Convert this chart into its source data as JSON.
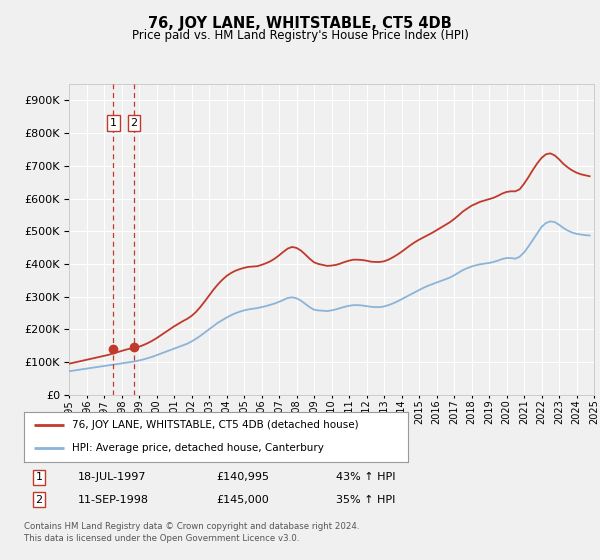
{
  "title": "76, JOY LANE, WHITSTABLE, CT5 4DB",
  "subtitle": "Price paid vs. HM Land Registry's House Price Index (HPI)",
  "legend_line1": "76, JOY LANE, WHITSTABLE, CT5 4DB (detached house)",
  "legend_line2": "HPI: Average price, detached house, Canterbury",
  "footer": "Contains HM Land Registry data © Crown copyright and database right 2024.\nThis data is licensed under the Open Government Licence v3.0.",
  "transaction1_date": "18-JUL-1997",
  "transaction1_price": "£140,995",
  "transaction1_hpi": "43% ↑ HPI",
  "transaction2_date": "11-SEP-1998",
  "transaction2_price": "£145,000",
  "transaction2_hpi": "35% ↑ HPI",
  "hpi_color": "#8ab4d9",
  "price_color": "#c0392b",
  "vline_color": "#c0392b",
  "marker_color": "#c0392b",
  "bg_color": "#f0f0f0",
  "plot_bg_color": "#f0f0f0",
  "grid_color": "#ffffff",
  "ylim": [
    0,
    950000
  ],
  "yticks": [
    0,
    100000,
    200000,
    300000,
    400000,
    500000,
    600000,
    700000,
    800000,
    900000
  ],
  "transaction1_x": 1997.54,
  "transaction2_x": 1998.71,
  "transaction1_y": 140995,
  "transaction2_y": 145000,
  "hpi_x": [
    1995.0,
    1995.25,
    1995.5,
    1995.75,
    1996.0,
    1996.25,
    1996.5,
    1996.75,
    1997.0,
    1997.25,
    1997.5,
    1997.75,
    1998.0,
    1998.25,
    1998.5,
    1998.75,
    1999.0,
    1999.25,
    1999.5,
    1999.75,
    2000.0,
    2000.25,
    2000.5,
    2000.75,
    2001.0,
    2001.25,
    2001.5,
    2001.75,
    2002.0,
    2002.25,
    2002.5,
    2002.75,
    2003.0,
    2003.25,
    2003.5,
    2003.75,
    2004.0,
    2004.25,
    2004.5,
    2004.75,
    2005.0,
    2005.25,
    2005.5,
    2005.75,
    2006.0,
    2006.25,
    2006.5,
    2006.75,
    2007.0,
    2007.25,
    2007.5,
    2007.75,
    2008.0,
    2008.25,
    2008.5,
    2008.75,
    2009.0,
    2009.25,
    2009.5,
    2009.75,
    2010.0,
    2010.25,
    2010.5,
    2010.75,
    2011.0,
    2011.25,
    2011.5,
    2011.75,
    2012.0,
    2012.25,
    2012.5,
    2012.75,
    2013.0,
    2013.25,
    2013.5,
    2013.75,
    2014.0,
    2014.25,
    2014.5,
    2014.75,
    2015.0,
    2015.25,
    2015.5,
    2015.75,
    2016.0,
    2016.25,
    2016.5,
    2016.75,
    2017.0,
    2017.25,
    2017.5,
    2017.75,
    2018.0,
    2018.25,
    2018.5,
    2018.75,
    2019.0,
    2019.25,
    2019.5,
    2019.75,
    2020.0,
    2020.25,
    2020.5,
    2020.75,
    2021.0,
    2021.25,
    2021.5,
    2021.75,
    2022.0,
    2022.25,
    2022.5,
    2022.75,
    2023.0,
    2023.25,
    2023.5,
    2023.75,
    2024.0,
    2024.25,
    2024.5,
    2024.75
  ],
  "hpi_y": [
    72000,
    74000,
    76000,
    78000,
    80000,
    82000,
    84000,
    86000,
    88000,
    90000,
    92000,
    94000,
    96000,
    98000,
    100000,
    102000,
    105000,
    108000,
    112000,
    116000,
    121000,
    126000,
    131000,
    136000,
    141000,
    146000,
    151000,
    156000,
    163000,
    171000,
    180000,
    190000,
    200000,
    210000,
    220000,
    228000,
    236000,
    243000,
    249000,
    254000,
    258000,
    261000,
    263000,
    265000,
    268000,
    271000,
    275000,
    279000,
    284000,
    290000,
    296000,
    298000,
    295000,
    288000,
    278000,
    268000,
    260000,
    258000,
    257000,
    256000,
    258000,
    261000,
    265000,
    269000,
    272000,
    274000,
    274000,
    273000,
    271000,
    269000,
    268000,
    268000,
    270000,
    274000,
    279000,
    285000,
    292000,
    299000,
    306000,
    313000,
    320000,
    327000,
    333000,
    338000,
    343000,
    348000,
    353000,
    358000,
    365000,
    373000,
    381000,
    387000,
    392000,
    396000,
    399000,
    401000,
    403000,
    406000,
    410000,
    415000,
    418000,
    418000,
    416000,
    422000,
    435000,
    453000,
    473000,
    493000,
    513000,
    525000,
    530000,
    528000,
    520000,
    510000,
    502000,
    496000,
    492000,
    490000,
    488000,
    487000
  ],
  "price_x": [
    1995.0,
    1995.25,
    1995.5,
    1995.75,
    1996.0,
    1996.25,
    1996.5,
    1996.75,
    1997.0,
    1997.25,
    1997.5,
    1997.75,
    1998.0,
    1998.25,
    1998.5,
    1998.75,
    1999.0,
    1999.25,
    1999.5,
    1999.75,
    2000.0,
    2000.25,
    2000.5,
    2000.75,
    2001.0,
    2001.25,
    2001.5,
    2001.75,
    2002.0,
    2002.25,
    2002.5,
    2002.75,
    2003.0,
    2003.25,
    2003.5,
    2003.75,
    2004.0,
    2004.25,
    2004.5,
    2004.75,
    2005.0,
    2005.25,
    2005.5,
    2005.75,
    2006.0,
    2006.25,
    2006.5,
    2006.75,
    2007.0,
    2007.25,
    2007.5,
    2007.75,
    2008.0,
    2008.25,
    2008.5,
    2008.75,
    2009.0,
    2009.25,
    2009.5,
    2009.75,
    2010.0,
    2010.25,
    2010.5,
    2010.75,
    2011.0,
    2011.25,
    2011.5,
    2011.75,
    2012.0,
    2012.25,
    2012.5,
    2012.75,
    2013.0,
    2013.25,
    2013.5,
    2013.75,
    2014.0,
    2014.25,
    2014.5,
    2014.75,
    2015.0,
    2015.25,
    2015.5,
    2015.75,
    2016.0,
    2016.25,
    2016.5,
    2016.75,
    2017.0,
    2017.25,
    2017.5,
    2017.75,
    2018.0,
    2018.25,
    2018.5,
    2018.75,
    2019.0,
    2019.25,
    2019.5,
    2019.75,
    2020.0,
    2020.25,
    2020.5,
    2020.75,
    2021.0,
    2021.25,
    2021.5,
    2021.75,
    2022.0,
    2022.25,
    2022.5,
    2022.75,
    2023.0,
    2023.25,
    2023.5,
    2023.75,
    2024.0,
    2024.25,
    2024.5,
    2024.75
  ],
  "price_y": [
    95000,
    98000,
    101000,
    104000,
    107000,
    110000,
    113000,
    116000,
    119000,
    122000,
    126000,
    130000,
    134000,
    138000,
    141000,
    143000,
    147000,
    152000,
    158000,
    165000,
    173000,
    182000,
    191000,
    200000,
    209000,
    217000,
    225000,
    232000,
    241000,
    253000,
    268000,
    285000,
    303000,
    321000,
    337000,
    351000,
    363000,
    372000,
    379000,
    384000,
    388000,
    391000,
    392000,
    393000,
    397000,
    402000,
    408000,
    416000,
    426000,
    437000,
    447000,
    452000,
    449000,
    441000,
    429000,
    416000,
    405000,
    400000,
    397000,
    394000,
    395000,
    397000,
    401000,
    406000,
    410000,
    413000,
    413000,
    412000,
    410000,
    407000,
    406000,
    406000,
    408000,
    413000,
    420000,
    428000,
    437000,
    447000,
    457000,
    466000,
    474000,
    481000,
    488000,
    495000,
    503000,
    511000,
    519000,
    527000,
    537000,
    548000,
    560000,
    569000,
    578000,
    584000,
    590000,
    594000,
    598000,
    602000,
    608000,
    615000,
    620000,
    622000,
    622000,
    628000,
    645000,
    665000,
    687000,
    707000,
    724000,
    735000,
    738000,
    732000,
    720000,
    706000,
    695000,
    686000,
    679000,
    674000,
    671000,
    668000
  ],
  "xlim": [
    1995,
    2025
  ],
  "xticks": [
    1995,
    1996,
    1997,
    1998,
    1999,
    2000,
    2001,
    2002,
    2003,
    2004,
    2005,
    2006,
    2007,
    2008,
    2009,
    2010,
    2011,
    2012,
    2013,
    2014,
    2015,
    2016,
    2017,
    2018,
    2019,
    2020,
    2021,
    2022,
    2023,
    2024,
    2025
  ]
}
